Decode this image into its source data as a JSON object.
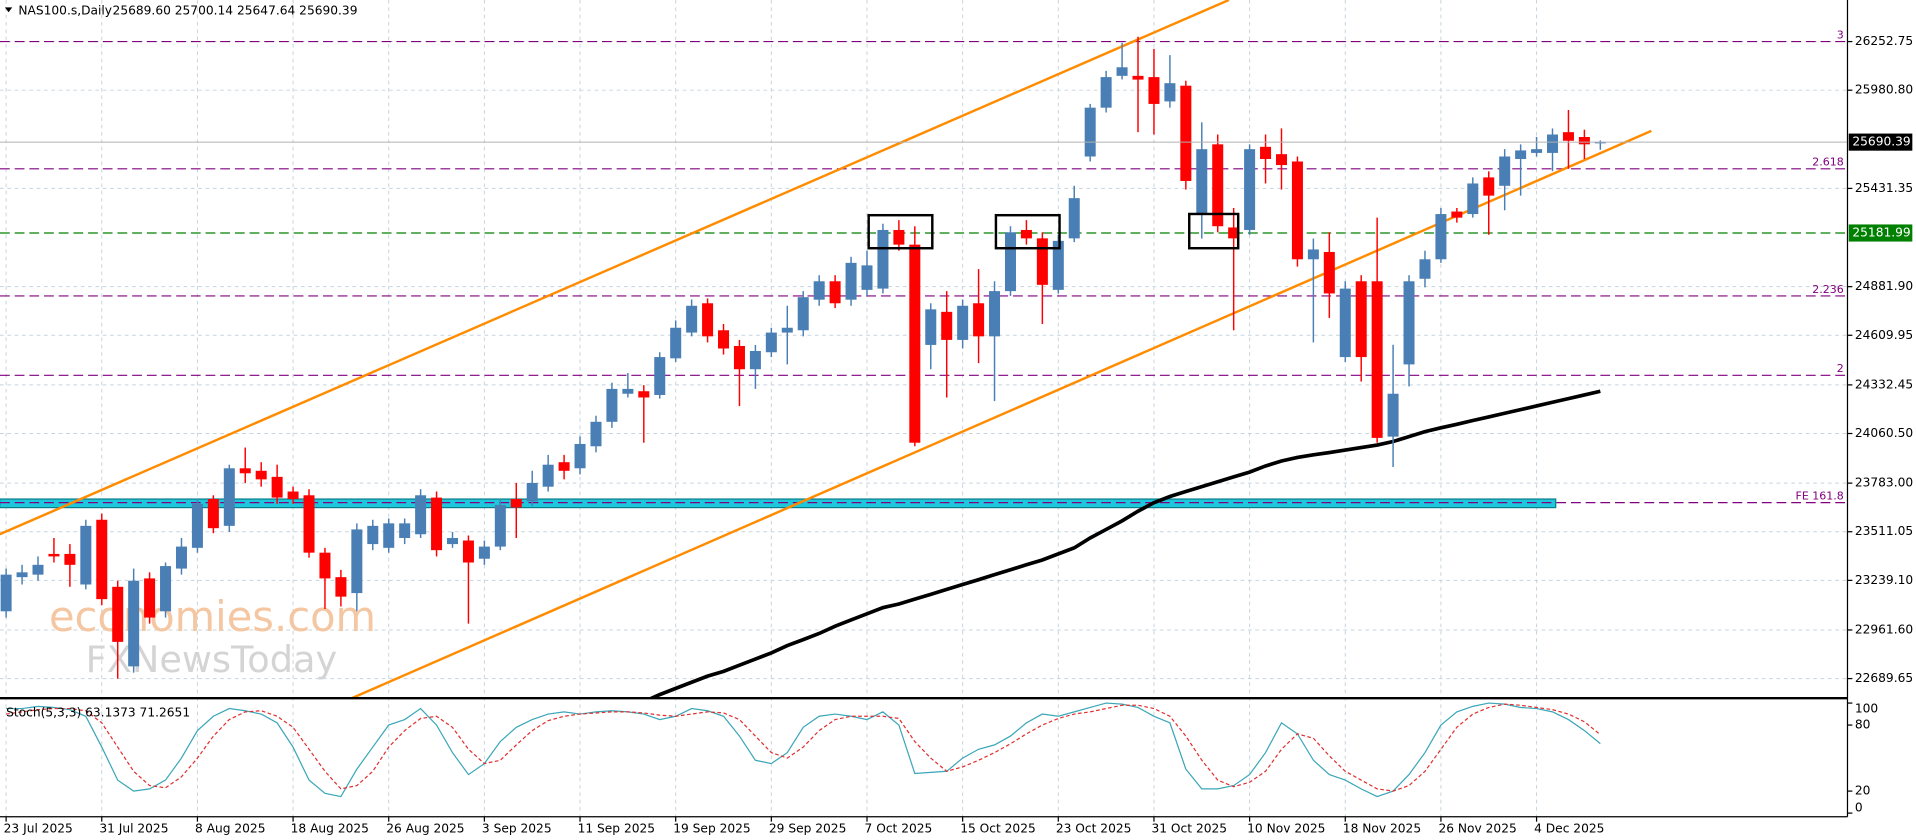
{
  "chart_data": {
    "type": "candlestick",
    "title": "NAS100.s,Daily",
    "title_values": "25689.60 25700.14 25647.64 25690.39",
    "categories": [
      "23 Jul 2025",
      null,
      null,
      null,
      null,
      null,
      "31 Jul 2025",
      null,
      null,
      null,
      null,
      null,
      "8 Aug 2025",
      null,
      null,
      null,
      null,
      null,
      "18 Aug 2025",
      null,
      null,
      null,
      null,
      null,
      "26 Aug 2025",
      null,
      null,
      null,
      null,
      null,
      "3 Sep 2025",
      null,
      null,
      null,
      null,
      null,
      "11 Sep 2025",
      null,
      null,
      null,
      null,
      null,
      "19 Sep 2025",
      null,
      null,
      null,
      null,
      null,
      "29 Sep 2025",
      null,
      null,
      null,
      null,
      null,
      "7 Oct 2025",
      null,
      null,
      null,
      null,
      null,
      "15 Oct 2025",
      null,
      null,
      null,
      null,
      null,
      "23 Oct 2025",
      null,
      null,
      null,
      null,
      null,
      "31 Oct 2025",
      null,
      null,
      null,
      null,
      null,
      "10 Nov 2025",
      null,
      null,
      null,
      null,
      null,
      "18 Nov 2025",
      null,
      null,
      null,
      null,
      null,
      "26 Nov 2025",
      null,
      null,
      null,
      null,
      null,
      "4 Dec 2025",
      null,
      null,
      null,
      null
    ],
    "open": [
      23066,
      23257,
      23271,
      23387,
      23387,
      23216,
      23578,
      23203,
      22758,
      23250,
      23066,
      23305,
      23421,
      23694,
      23544,
      23866,
      23852,
      23818,
      23736,
      23715,
      23394,
      23257,
      23168,
      23442,
      23421,
      23476,
      23497,
      23702,
      23442,
      23462,
      23360,
      23428,
      23694,
      23681,
      23763,
      23900,
      23866,
      23989,
      24126,
      24283,
      24297,
      24276,
      24481,
      24625,
      24789,
      24638,
      24550,
      24420,
      24515,
      24625,
      24638,
      24809,
      24912,
      24809,
      24864,
      24871,
      25199,
      25117,
      24556,
      24741,
      24584,
      24789,
      24604,
      24857,
      25199,
      25152,
      24864,
      25152,
      25610,
      25883,
      26061,
      26061,
      26054,
      25918,
      26006,
      25288,
      25678,
      25213,
      25199,
      25664,
      25623,
      25582,
      25035,
      25076,
      24488,
      24912,
      24912,
      24043,
      24447,
      24926,
      25035,
      25302,
      25288,
      25493,
      25446,
      25596,
      25630,
      25630,
      25746,
      25719,
      25689.6
    ],
    "high": [
      23305,
      23326,
      23373,
      23476,
      23442,
      23578,
      23613,
      23237,
      23305,
      23284,
      23339,
      23476,
      23694,
      23715,
      23886,
      23982,
      23900,
      23886,
      23763,
      23749,
      23421,
      23298,
      23558,
      23578,
      23585,
      23585,
      23749,
      23736,
      23510,
      23490,
      23462,
      23694,
      23784,
      23852,
      23941,
      23941,
      24044,
      24160,
      24345,
      24399,
      24331,
      24515,
      24693,
      24810,
      24816,
      24673,
      24584,
      24556,
      24652,
      24775,
      24857,
      24946,
      24946,
      25049,
      25083,
      25234,
      25254,
      25220,
      24789,
      24857,
      24810,
      24980,
      24912,
      25220,
      25254,
      25186,
      25172,
      25446,
      25904,
      26089,
      26246,
      26280,
      26212,
      26177,
      26034,
      25801,
      25733,
      25322,
      25678,
      25733,
      25767,
      25610,
      25151,
      25186,
      24912,
      24946,
      25268,
      24557,
      24946,
      25083,
      25322,
      25322,
      25493,
      25527,
      25651,
      25678,
      25719,
      25767,
      25870,
      25760,
      25700.14
    ],
    "low": [
      23031,
      23216,
      23237,
      23339,
      23203,
      23189,
      23100,
      22689,
      22723,
      22997,
      23031,
      23271,
      23394,
      23503,
      23510,
      23784,
      23763,
      23667,
      23667,
      23366,
      23079,
      23093,
      23066,
      23408,
      23394,
      23442,
      23476,
      23373,
      23421,
      22997,
      23326,
      23408,
      23476,
      23654,
      23736,
      23804,
      23832,
      23955,
      24092,
      24262,
      24009,
      24256,
      24461,
      24604,
      24570,
      24502,
      24214,
      24310,
      24488,
      24447,
      24604,
      24775,
      24762,
      24775,
      24830,
      24844,
      25083,
      23989,
      24420,
      24262,
      24536,
      24454,
      24242,
      24830,
      25117,
      24673,
      24844,
      25131,
      25582,
      25856,
      26041,
      25746,
      25733,
      25883,
      25425,
      25151,
      25186,
      24638,
      25172,
      25459,
      25425,
      24994,
      24570,
      24707,
      24461,
      24351,
      24009,
      23873,
      24324,
      24878,
      25015,
      25240,
      25268,
      25172,
      25309,
      25391,
      25610,
      25528,
      25541,
      25596,
      25647.64
    ],
    "close": [
      23271,
      23284,
      23326,
      23373,
      23326,
      23544,
      23134,
      22895,
      23237,
      23031,
      23319,
      23428,
      23667,
      23531,
      23866,
      23838,
      23804,
      23702,
      23694,
      23394,
      23250,
      23148,
      23524,
      23544,
      23558,
      23558,
      23715,
      23408,
      23476,
      23339,
      23428,
      23661,
      23647,
      23784,
      23886,
      23852,
      24002,
      24126,
      24310,
      24310,
      24262,
      24488,
      24652,
      24775,
      24604,
      24536,
      24420,
      24522,
      24625,
      24652,
      24823,
      24912,
      24789,
      25015,
      25001,
      25199,
      25117,
      24009,
      24755,
      24584,
      24775,
      24604,
      24857,
      25186,
      25152,
      24892,
      25138,
      25377,
      25883,
      26054,
      26109,
      26040,
      25904,
      26020,
      25473,
      25651,
      25220,
      25152,
      25651,
      25596,
      25562,
      25035,
      25090,
      24844,
      24871,
      24488,
      24036,
      24283,
      24912,
      25035,
      25288,
      25268,
      25459,
      25391,
      25610,
      25644,
      25651,
      25733,
      25698,
      25678,
      25690.39
    ],
    "up_color": "#4a7fb5",
    "down_color": "#ff0000",
    "ylim": [
      22587,
      26485.3
    ],
    "yticks": [
      26252.75,
      {
        "value": 25980.8,
        "label": "25980.80"
      },
      25431.35,
      {
        "value": 24881.9,
        "label": "24881.90"
      },
      24609.95,
      24332.45,
      {
        "value": 24060.5,
        "label": "24060.50"
      },
      {
        "value": 23783,
        "label": "23783.00"
      },
      23511.05,
      {
        "value": 23239.1,
        "label": "23239.10"
      },
      {
        "value": 22961.6,
        "label": "22961.60"
      },
      22689.65
    ],
    "grid": true,
    "moving_average": {
      "color": "#000000",
      "values": [
        null,
        null,
        null,
        null,
        null,
        null,
        null,
        null,
        null,
        null,
        null,
        null,
        null,
        null,
        null,
        null,
        null,
        null,
        null,
        null,
        null,
        null,
        null,
        null,
        null,
        null,
        null,
        null,
        null,
        null,
        null,
        null,
        null,
        null,
        null,
        null,
        null,
        null,
        null,
        null,
        22560,
        22600,
        22635,
        22669,
        22703,
        22730,
        22765,
        22799,
        22833,
        22874,
        22908,
        22942,
        22983,
        23018,
        23052,
        23086,
        23107,
        23134,
        23161,
        23189,
        23216,
        23243,
        23271,
        23298,
        23326,
        23353,
        23387,
        23421,
        23476,
        23524,
        23572,
        23626,
        23674,
        23708,
        23736,
        23763,
        23791,
        23818,
        23845,
        23879,
        23907,
        23927,
        23941,
        23954,
        23968,
        23982,
        23996,
        24016,
        24043,
        24071,
        24092,
        24112,
        24133,
        24153,
        24174,
        24194,
        24215,
        24235,
        24256,
        24276,
        24297
      ]
    },
    "channel": {
      "color": "#ff8c00",
      "lines": [
        {
          "x": [
            -0.4,
            76.7
          ],
          "y": [
            23497,
            26485.3
          ]
        },
        {
          "x": [
            21.5,
            103.2
          ],
          "y": [
            22573,
            25753
          ]
        }
      ]
    },
    "band": {
      "color": "#1ec8dc",
      "x": [
        -0.4,
        97.2
      ],
      "y": [
        23646,
        23694
      ]
    },
    "levels": [
      {
        "value": 26252.75,
        "label": "3",
        "color": "#800080"
      },
      {
        "value": 25541,
        "label": "2.618",
        "color": "#800080"
      },
      {
        "value": 24830,
        "label": "2.236",
        "color": "#800080"
      },
      {
        "value": 24386,
        "label": "2",
        "color": "#800080"
      },
      {
        "value": 23674,
        "label": "FE 161.8",
        "color": "#800080"
      }
    ],
    "marked_price": {
      "value": 25181.99,
      "color": "#008000"
    },
    "watermark": [
      "economies.com",
      "FXNewsToday"
    ],
    "indicator": {
      "title": "Stoch(5,3,3) 63.1373 71.2651",
      "ylim": [
        0,
        100
      ],
      "yticks": [
        100,
        80,
        20,
        0
      ],
      "main": {
        "color": "#3aa6b8",
        "values": [
          95,
          95,
          97,
          96,
          94,
          88,
          60,
          30,
          20,
          22,
          30,
          50,
          75,
          88,
          95,
          93,
          90,
          82,
          60,
          30,
          18,
          15,
          40,
          60,
          80,
          85,
          95,
          80,
          55,
          35,
          45,
          65,
          78,
          85,
          90,
          92,
          90,
          92,
          93,
          92,
          90,
          85,
          88,
          95,
          93,
          88,
          70,
          48,
          45,
          55,
          78,
          88,
          90,
          88,
          85,
          92,
          80,
          36,
          37,
          38,
          50,
          58,
          62,
          70,
          82,
          90,
          88,
          92,
          96,
          100,
          99,
          96,
          88,
          82,
          40,
          22,
          22,
          25,
          35,
          55,
          82,
          72,
          48,
          35,
          30,
          22,
          15,
          20,
          35,
          55,
          80,
          92,
          97,
          100,
          99,
          96,
          95,
          92,
          85,
          75,
          63.1373
        ]
      },
      "signal": {
        "color": "#e03030",
        "values": [
          90,
          92,
          94,
          95,
          95,
          93,
          82,
          60,
          38,
          25,
          23,
          33,
          50,
          70,
          85,
          92,
          93,
          88,
          78,
          58,
          38,
          22,
          25,
          38,
          60,
          75,
          86,
          88,
          78,
          58,
          45,
          48,
          62,
          75,
          84,
          88,
          90,
          91,
          92,
          92,
          91,
          89,
          88,
          90,
          92,
          91,
          85,
          70,
          55,
          50,
          60,
          75,
          85,
          88,
          88,
          88,
          86,
          65,
          50,
          38,
          42,
          48,
          55,
          63,
          72,
          80,
          86,
          90,
          92,
          95,
          98,
          98,
          95,
          88,
          70,
          48,
          30,
          24,
          28,
          38,
          58,
          72,
          68,
          52,
          38,
          30,
          22,
          20,
          25,
          38,
          58,
          78,
          90,
          96,
          99,
          98,
          96,
          94,
          90,
          83,
          71.2651
        ]
      }
    }
  }
}
